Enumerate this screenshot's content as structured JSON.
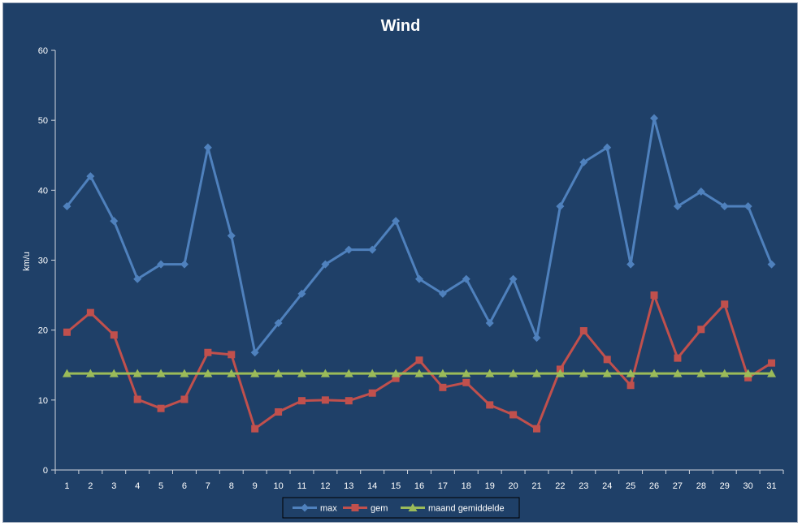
{
  "chart_data": {
    "type": "line",
    "title": "Wind",
    "xlabel": "",
    "ylabel": "km/u",
    "ylim": [
      0,
      60
    ],
    "yticks": [
      0,
      10,
      20,
      30,
      40,
      50,
      60
    ],
    "categories": [
      "1",
      "2",
      "3",
      "4",
      "5",
      "6",
      "7",
      "8",
      "9",
      "10",
      "11",
      "12",
      "13",
      "14",
      "15",
      "16",
      "17",
      "18",
      "19",
      "20",
      "21",
      "22",
      "23",
      "24",
      "25",
      "26",
      "27",
      "28",
      "29",
      "30",
      "31"
    ],
    "grid": false,
    "legend_position": "bottom",
    "series": [
      {
        "name": "max",
        "color": "#4f81bd",
        "marker": "diamond",
        "values": [
          37.7,
          42,
          35.6,
          27.3,
          29.4,
          29.4,
          46.1,
          33.5,
          16.8,
          21,
          25.2,
          29.4,
          31.5,
          31.5,
          35.6,
          27.3,
          25.2,
          27.3,
          21,
          27.3,
          18.9,
          37.7,
          44,
          46.1,
          29.4,
          50.3,
          37.7,
          39.8,
          37.7,
          37.7,
          29.4
        ]
      },
      {
        "name": "gem",
        "color": "#c0504d",
        "marker": "square",
        "values": [
          19.7,
          22.5,
          19.3,
          10.1,
          8.8,
          10.1,
          16.8,
          16.5,
          5.9,
          8.3,
          9.9,
          10,
          9.9,
          11,
          13.1,
          15.7,
          11.8,
          12.5,
          9.3,
          7.9,
          5.9,
          14.4,
          19.9,
          15.8,
          12.1,
          25,
          16,
          20.1,
          23.7,
          13.2,
          15.3
        ]
      },
      {
        "name": "maand gemiddelde",
        "color": "#9bbb59",
        "marker": "triangle",
        "values": [
          13.8,
          13.8,
          13.8,
          13.8,
          13.8,
          13.8,
          13.8,
          13.8,
          13.8,
          13.8,
          13.8,
          13.8,
          13.8,
          13.8,
          13.8,
          13.8,
          13.8,
          13.8,
          13.8,
          13.8,
          13.8,
          13.8,
          13.8,
          13.8,
          13.8,
          13.8,
          13.8,
          13.8,
          13.8,
          13.8,
          13.8
        ]
      }
    ]
  }
}
